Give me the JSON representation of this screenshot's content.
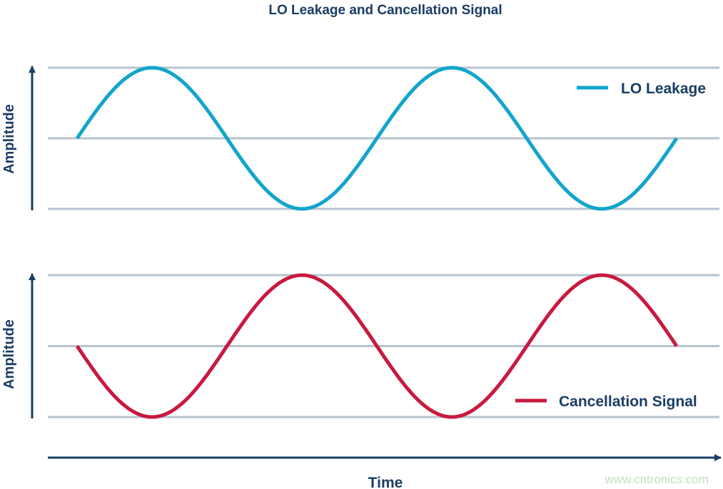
{
  "chart_data": [
    {
      "type": "line",
      "title": "LO Leakage and Cancellation Signal",
      "ylabel": "Amplitude",
      "xlabel": "Time",
      "x": [
        0,
        0.25,
        0.5,
        0.75,
        1,
        1.25,
        1.5,
        1.75,
        2
      ],
      "ylim": [
        -1,
        1
      ],
      "grid": true,
      "legend_position": "top-right",
      "series": [
        {
          "name": "LO Leakage",
          "color": "#12a5cc",
          "values": [
            0,
            1,
            0,
            -1,
            0,
            1,
            0,
            -1,
            0
          ]
        }
      ]
    },
    {
      "type": "line",
      "ylabel": "Amplitude",
      "xlabel": "Time",
      "x": [
        0,
        0.25,
        0.5,
        0.75,
        1,
        1.25,
        1.5,
        1.75,
        2
      ],
      "ylim": [
        -1,
        1
      ],
      "grid": true,
      "legend_position": "bottom-right",
      "series": [
        {
          "name": "Cancellation Signal",
          "color": "#c8193f",
          "values": [
            0,
            -1,
            0,
            1,
            0,
            -1,
            0,
            1,
            0
          ]
        }
      ]
    }
  ],
  "colors": {
    "axis": "#1b3d63",
    "grid": "#b7c3cf"
  },
  "watermark": "www.cntronics.com"
}
